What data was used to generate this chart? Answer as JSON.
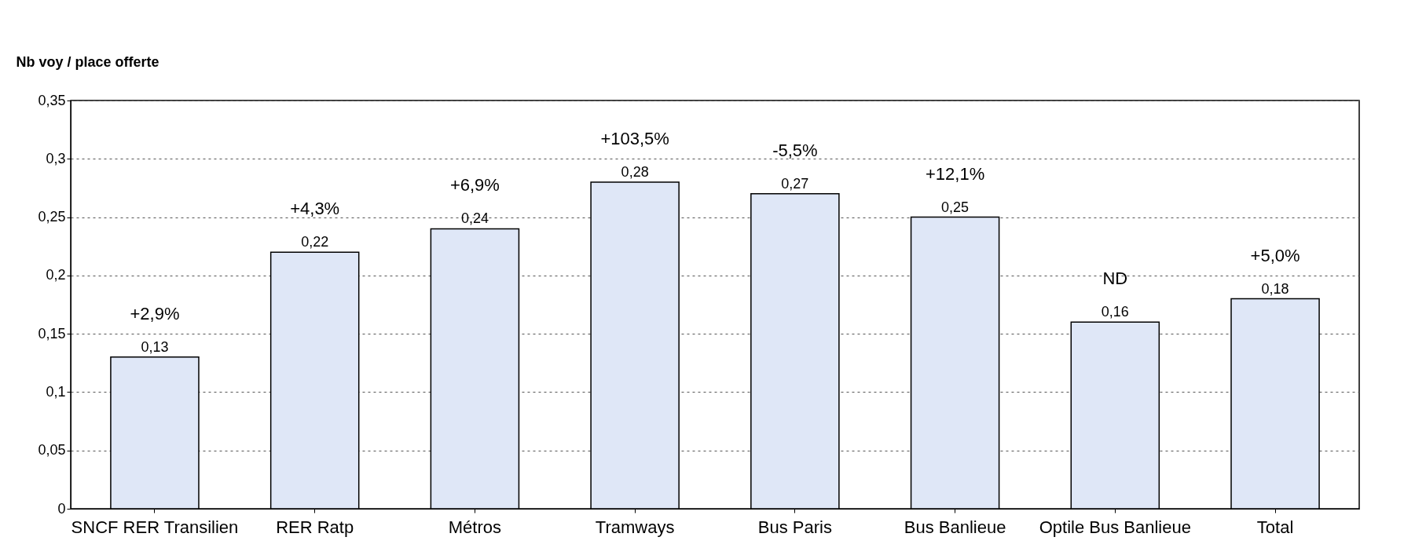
{
  "chart_data": {
    "type": "bar",
    "ylabel": "Nb voy / place offerte",
    "categories": [
      "SNCF RER Transilien",
      "RER Ratp",
      "Métros",
      "Tramways",
      "Bus Paris",
      "Bus Banlieue",
      "Optile Bus Banlieue",
      "Total"
    ],
    "values": [
      0.13,
      0.22,
      0.24,
      0.28,
      0.27,
      0.25,
      0.16,
      0.18
    ],
    "color": "#dfe7f7",
    "value_labels": [
      "0,13",
      "0,22",
      "0,24",
      "0,28",
      "0,27",
      "0,25",
      "0,16",
      "0,18"
    ],
    "ylim": [
      0,
      0.35
    ],
    "yticks": [
      {
        "value": 0,
        "label": "0"
      },
      {
        "value": 0.05,
        "label": "0,05"
      },
      {
        "value": 0.1,
        "label": "0,1"
      },
      {
        "value": 0.15,
        "label": "0,15"
      },
      {
        "value": 0.2,
        "label": "0,2"
      },
      {
        "value": 0.25,
        "label": "0,25"
      },
      {
        "value": 0.3,
        "label": "0,3"
      },
      {
        "value": 0.35,
        "label": "0,35"
      }
    ],
    "grid": "y",
    "annotations": [
      "+2,9%",
      "+4,3%",
      "+6,9%",
      "+103,5%",
      "-5,5%",
      "+12,1%",
      "ND",
      "+5,0%"
    ]
  }
}
